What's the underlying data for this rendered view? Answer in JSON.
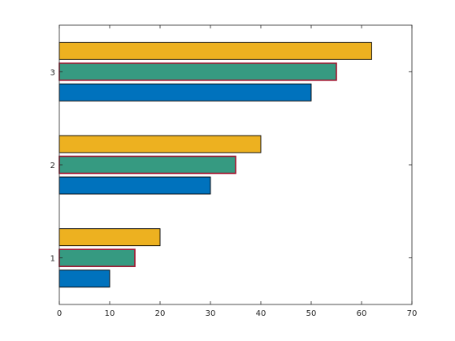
{
  "chart_data": {
    "type": "bar",
    "orientation": "horizontal",
    "title": "",
    "xlabel": "",
    "ylabel": "",
    "categories": [
      "1",
      "2",
      "3"
    ],
    "series": [
      {
        "values": [
          10,
          30,
          50
        ],
        "color": "#0072BD",
        "edge": "#000000"
      },
      {
        "values": [
          15,
          35,
          55
        ],
        "color": "#369A81",
        "edge": "#A2142F"
      },
      {
        "values": [
          20,
          40,
          62
        ],
        "color": "#EDB120",
        "edge": "#000000"
      }
    ],
    "xlim": [
      0,
      70
    ],
    "xticks": [
      "0",
      "10",
      "20",
      "30",
      "40",
      "50",
      "60",
      "70"
    ],
    "ylim": [
      0.5,
      3.5
    ],
    "yticks": [
      "1",
      "2",
      "3"
    ],
    "grid": false,
    "legend": "none"
  }
}
